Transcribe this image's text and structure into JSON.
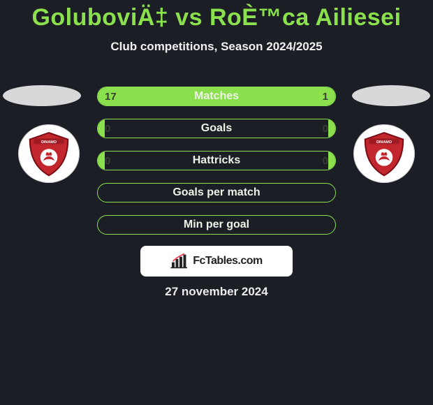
{
  "title": "GoluboviÄ‡ vs RoÈ™ca Ailiesei",
  "subtitle": "Club competitions, Season 2024/2025",
  "date": "27 november 2024",
  "branding": {
    "text": "FcTables.com"
  },
  "colors": {
    "accent": "#8be04e",
    "background": "#1b1e24",
    "badge_primary": "#c1272d",
    "badge_secondary": "#ffffff",
    "badge_banner": "#9e1b23"
  },
  "bars": [
    {
      "label": "Matches",
      "left_value": "17",
      "right_value": "1",
      "left_pct": 79,
      "right_pct": 21,
      "show_values": true
    },
    {
      "label": "Goals",
      "left_value": "0",
      "right_value": "0",
      "left_pct": 3,
      "right_pct": 3,
      "show_values": true
    },
    {
      "label": "Hattricks",
      "left_value": "0",
      "right_value": "0",
      "left_pct": 3,
      "right_pct": 3,
      "show_values": true
    },
    {
      "label": "Goals per match",
      "left_value": "",
      "right_value": "",
      "left_pct": 0,
      "right_pct": 0,
      "show_values": false
    },
    {
      "label": "Min per goal",
      "left_value": "",
      "right_value": "",
      "left_pct": 0,
      "right_pct": 0,
      "show_values": false
    }
  ]
}
